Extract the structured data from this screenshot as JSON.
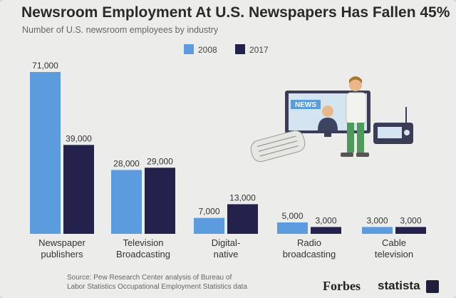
{
  "header": {
    "title": "Newsroom Employment At U.S. Newspapers Has Fallen 45%",
    "subtitle": "Number of U.S. newsroom employees by industry"
  },
  "footer": {
    "source_line1": "Source: Pew Research Center analysis of Bureau of",
    "source_line2": "Labor Statistics Occupational Employment Statistics data",
    "brand_forbes": "Forbes",
    "brand_statista": "statista"
  },
  "illustration": {
    "screen_text": "NEWS"
  },
  "colors": {
    "series_2008": "#5b9bde",
    "series_2017": "#24224d"
  },
  "chart_data": {
    "type": "bar",
    "title": "Newsroom Employment At U.S. Newspapers Has Fallen 45%",
    "subtitle": "Number of U.S. newsroom employees by industry",
    "categories": [
      [
        "Newspaper",
        "publishers"
      ],
      [
        "Television",
        "Broadcasting"
      ],
      [
        "Digital-",
        "native"
      ],
      [
        "Radio",
        "broadcasting"
      ],
      [
        "Cable",
        "television"
      ]
    ],
    "series": [
      {
        "name": "2008",
        "values": [
          71000,
          28000,
          7000,
          5000,
          3000
        ],
        "labels": [
          "71,000",
          "28,000",
          "7,000",
          "5,000",
          "3,000"
        ]
      },
      {
        "name": "2017",
        "values": [
          39000,
          29000,
          13000,
          3000,
          3000
        ],
        "labels": [
          "39,000",
          "29,000",
          "13,000",
          "3,000",
          "3,000"
        ]
      }
    ],
    "ylim": [
      0,
      71000
    ],
    "xlabel": "",
    "ylabel": "",
    "legend_position": "top-center"
  }
}
